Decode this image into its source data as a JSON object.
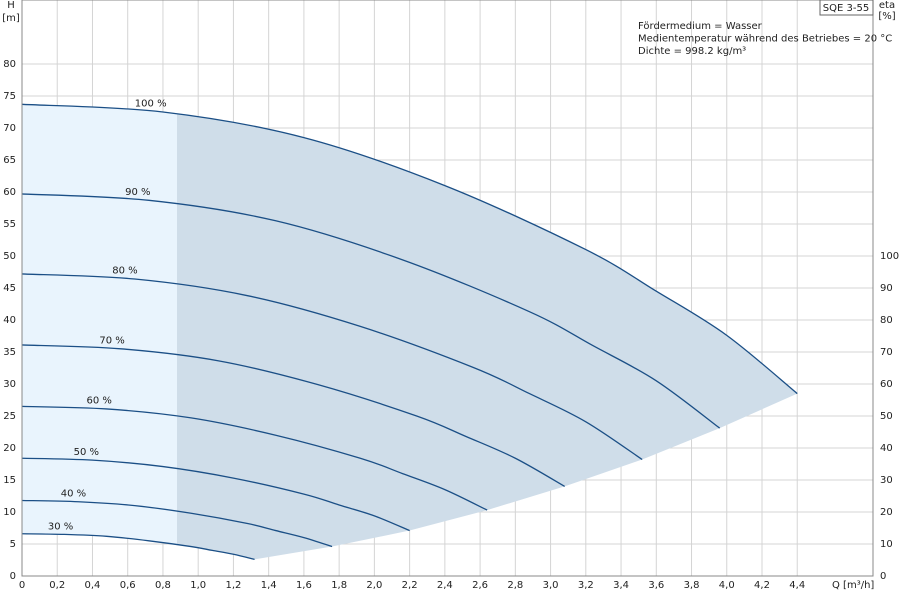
{
  "chart_data": {
    "type": "line",
    "title": "SQE 3-55",
    "annotations": [
      "Fördermedium = Wasser",
      "Medientemperatur während des Betriebes = 20 °C",
      "Dichte = 998.2 kg/m³"
    ],
    "y_label": [
      "H",
      "[m]"
    ],
    "y2_label": [
      "eta",
      "[%]"
    ],
    "x_label": "Q [m³/h]",
    "xlim": [
      0,
      4.83
    ],
    "ylim": [
      0,
      90
    ],
    "y2lim": [
      0,
      180
    ],
    "xticks": [
      0,
      {
        "value": 0.2,
        "label": "0,2"
      },
      {
        "value": 0.4,
        "label": "0,4"
      },
      {
        "value": 0.6,
        "label": "0,6"
      },
      {
        "value": 0.8,
        "label": "0,8"
      },
      {
        "value": 1.0,
        "label": "1,0"
      },
      {
        "value": 1.2,
        "label": "1,2"
      },
      {
        "value": 1.4,
        "label": "1,4"
      },
      {
        "value": 1.6,
        "label": "1,6"
      },
      {
        "value": 1.8,
        "label": "1,8"
      },
      {
        "value": 2.0,
        "label": "2,0"
      },
      {
        "value": 2.2,
        "label": "2,2"
      },
      {
        "value": 2.4,
        "label": "2,4"
      },
      {
        "value": 2.6,
        "label": "2,6"
      },
      {
        "value": 2.8,
        "label": "2,8"
      },
      {
        "value": 3.0,
        "label": "3,0"
      },
      {
        "value": 3.2,
        "label": "3,2"
      },
      {
        "value": 3.4,
        "label": "3,4"
      },
      {
        "value": 3.6,
        "label": "3,6"
      },
      {
        "value": 3.8,
        "label": "3,8"
      },
      {
        "value": 4.0,
        "label": "4,0"
      },
      {
        "value": 4.2,
        "label": "4,2"
      },
      {
        "value": 4.4,
        "label": "4,4"
      }
    ],
    "yticks": [
      0,
      5,
      10,
      15,
      20,
      25,
      30,
      35,
      40,
      45,
      50,
      55,
      60,
      65,
      70,
      75,
      80
    ],
    "y2ticks": [
      0,
      10,
      20,
      30,
      40,
      50,
      60,
      70,
      80,
      90,
      100
    ],
    "grid": true,
    "color": "#1b4f86",
    "range_color": "#cfdde9",
    "low_flow_color": "#e9f4fd",
    "low_flow_limit": 0.88,
    "series": [
      {
        "name": "100 %",
        "x": [
          0,
          0.8,
          1.6,
          2.4,
          3.2,
          3.6,
          4.0,
          4.4
        ],
        "values": [
          73.7,
          72.5,
          68.5,
          61.0,
          51.0,
          44.5,
          37.6,
          28.5
        ]
      },
      {
        "name": "90 %",
        "x": [
          0,
          0.72,
          1.44,
          2.16,
          2.88,
          3.24,
          3.6,
          3.96
        ],
        "values": [
          59.7,
          58.7,
          55.5,
          49.4,
          41.3,
          36.0,
          30.5,
          23.1
        ]
      },
      {
        "name": "80 %",
        "x": [
          0,
          0.64,
          1.28,
          1.92,
          2.56,
          2.88,
          3.2,
          3.52
        ],
        "values": [
          47.2,
          46.4,
          43.8,
          39.0,
          32.6,
          28.5,
          24.1,
          18.2
        ]
      },
      {
        "name": "70 %",
        "x": [
          0,
          0.56,
          1.12,
          1.68,
          2.24,
          2.52,
          2.8,
          3.08
        ],
        "values": [
          36.1,
          35.5,
          33.6,
          29.9,
          25.0,
          21.8,
          18.4,
          14.0
        ]
      },
      {
        "name": "60 %",
        "x": [
          0,
          0.48,
          0.96,
          1.44,
          1.92,
          2.16,
          2.4,
          2.64
        ],
        "values": [
          26.5,
          26.1,
          24.7,
          22.0,
          18.4,
          16.0,
          13.5,
          10.3
        ]
      },
      {
        "name": "50 %",
        "x": [
          0,
          0.4,
          0.8,
          1.2,
          1.6,
          1.8,
          2.0,
          2.2
        ],
        "values": [
          18.4,
          18.1,
          17.1,
          15.3,
          12.8,
          11.1,
          9.4,
          7.1
        ]
      },
      {
        "name": "40 %",
        "x": [
          0,
          0.32,
          0.64,
          0.96,
          1.28,
          1.44,
          1.6,
          1.76
        ],
        "values": [
          11.8,
          11.6,
          11.0,
          9.8,
          8.2,
          7.1,
          6.0,
          4.6
        ]
      },
      {
        "name": "30 %",
        "x": [
          0,
          0.24,
          0.48,
          0.72,
          0.96,
          1.08,
          1.2,
          1.32
        ],
        "values": [
          6.6,
          6.5,
          6.2,
          5.5,
          4.6,
          4.0,
          3.4,
          2.6
        ]
      }
    ]
  }
}
